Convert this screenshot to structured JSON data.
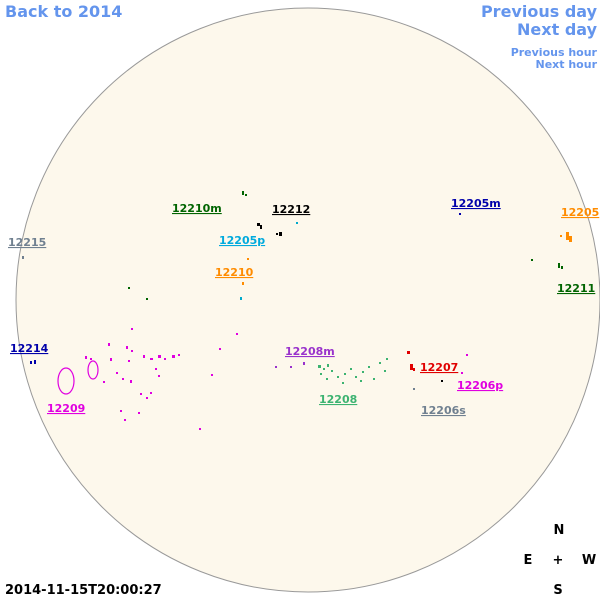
{
  "navigation": {
    "back_to_year": "Back to 2014",
    "previous_day": "Previous day",
    "next_day": "Next day",
    "previous_hour": "Previous hour",
    "next_hour": "Next hour"
  },
  "regions": [
    "12210m",
    "12212",
    "12205m",
    "12205",
    "12215",
    "12205p",
    "12210",
    "12211",
    "12214",
    "12208m",
    "12207",
    "12206p",
    "12208",
    "12206s",
    "12209"
  ],
  "compass": {
    "north": "N",
    "east": "E",
    "center": "+",
    "west": "W",
    "south": "S"
  },
  "timestamp": "2014-11-15T20:00:27"
}
